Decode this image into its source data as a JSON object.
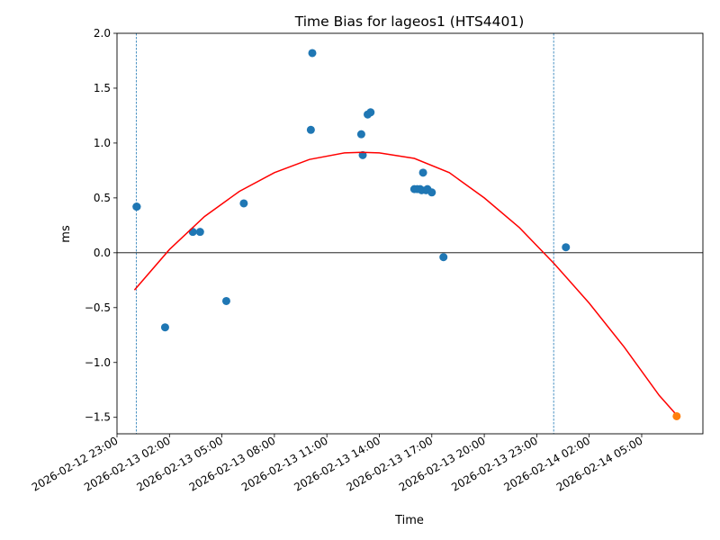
{
  "chart_data": {
    "type": "scatter",
    "title": "Time Bias for lageos1 (HTS4401)",
    "xlabel": "Time",
    "ylabel": "ms",
    "x_axis_kind": "datetime",
    "xlim": [
      "2026-02-12 23:00",
      "2026-02-14 08:30"
    ],
    "ylim": [
      -1.65,
      2.0
    ],
    "x_ticks": [
      "2026-02-12 23:00",
      "2026-02-13 02:00",
      "2026-02-13 05:00",
      "2026-02-13 08:00",
      "2026-02-13 11:00",
      "2026-02-13 14:00",
      "2026-02-13 17:00",
      "2026-02-13 20:00",
      "2026-02-13 23:00",
      "2026-02-14 02:00",
      "2026-02-14 05:00"
    ],
    "y_ticks": [
      -1.5,
      -1.0,
      -0.5,
      0.0,
      0.5,
      1.0,
      1.5,
      2.0
    ],
    "y_tick_labels": [
      "−1.5",
      "−1.0",
      "−0.5",
      "0.0",
      "0.5",
      "1.0",
      "1.5",
      "2.0"
    ],
    "grid": false,
    "legend": "none",
    "zero_line": {
      "y": 0,
      "color": "#000000"
    },
    "vertical_markers": {
      "color": "#1f77b4",
      "style": "dashed",
      "x": [
        "2026-02-13 00:06",
        "2026-02-13 23:58"
      ]
    },
    "series": [
      {
        "kind": "scatter",
        "color": "#1f77b4",
        "points": [
          {
            "x": "2026-02-13 00:07",
            "y": 0.42
          },
          {
            "x": "2026-02-13 00:08",
            "y": 0.42
          },
          {
            "x": "2026-02-13 01:45",
            "y": -0.68
          },
          {
            "x": "2026-02-13 03:20",
            "y": 0.19
          },
          {
            "x": "2026-02-13 03:45",
            "y": 0.19
          },
          {
            "x": "2026-02-13 05:15",
            "y": -0.44
          },
          {
            "x": "2026-02-13 06:15",
            "y": 0.45
          },
          {
            "x": "2026-02-13 10:05",
            "y": 1.12
          },
          {
            "x": "2026-02-13 10:10",
            "y": 1.82
          },
          {
            "x": "2026-02-13 12:58",
            "y": 1.08
          },
          {
            "x": "2026-02-13 13:03",
            "y": 0.89
          },
          {
            "x": "2026-02-13 13:20",
            "y": 1.26
          },
          {
            "x": "2026-02-13 13:30",
            "y": 1.28
          },
          {
            "x": "2026-02-13 16:00",
            "y": 0.58
          },
          {
            "x": "2026-02-13 16:10",
            "y": 0.58
          },
          {
            "x": "2026-02-13 16:20",
            "y": 0.58
          },
          {
            "x": "2026-02-13 16:25",
            "y": 0.57
          },
          {
            "x": "2026-02-13 16:30",
            "y": 0.73
          },
          {
            "x": "2026-02-13 16:40",
            "y": 0.57
          },
          {
            "x": "2026-02-13 16:45",
            "y": 0.58
          },
          {
            "x": "2026-02-13 17:00",
            "y": 0.55
          },
          {
            "x": "2026-02-13 17:40",
            "y": -0.04
          },
          {
            "x": "2026-02-14 00:40",
            "y": 0.05
          }
        ]
      },
      {
        "kind": "line",
        "color": "#ff0000",
        "points": [
          {
            "x": "2026-02-13 00:00",
            "y": -0.34
          },
          {
            "x": "2026-02-13 02:00",
            "y": 0.03
          },
          {
            "x": "2026-02-13 04:00",
            "y": 0.33
          },
          {
            "x": "2026-02-13 06:00",
            "y": 0.56
          },
          {
            "x": "2026-02-13 08:00",
            "y": 0.73
          },
          {
            "x": "2026-02-13 10:00",
            "y": 0.85
          },
          {
            "x": "2026-02-13 12:00",
            "y": 0.91
          },
          {
            "x": "2026-02-13 13:00",
            "y": 0.915
          },
          {
            "x": "2026-02-13 14:00",
            "y": 0.91
          },
          {
            "x": "2026-02-13 16:00",
            "y": 0.86
          },
          {
            "x": "2026-02-13 18:00",
            "y": 0.73
          },
          {
            "x": "2026-02-13 20:00",
            "y": 0.5
          },
          {
            "x": "2026-02-13 22:00",
            "y": 0.23
          },
          {
            "x": "2026-02-14 00:00",
            "y": -0.1
          },
          {
            "x": "2026-02-14 02:00",
            "y": -0.46
          },
          {
            "x": "2026-02-14 04:00",
            "y": -0.86
          },
          {
            "x": "2026-02-14 06:00",
            "y": -1.3
          },
          {
            "x": "2026-02-14 07:00",
            "y": -1.48
          }
        ]
      },
      {
        "kind": "scatter",
        "color": "#ff7f0e",
        "points": [
          {
            "x": "2026-02-14 07:00",
            "y": -1.49
          }
        ]
      }
    ]
  }
}
